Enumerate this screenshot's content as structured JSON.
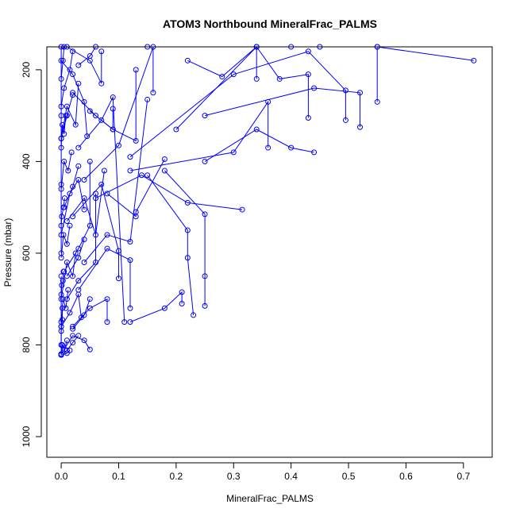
{
  "chart_data": {
    "type": "scatter",
    "title": "ATOM3 Northbound MineralFrac_PALMS",
    "xlabel": "MineralFrac_PALMS",
    "ylabel": "Pressure (mbar)",
    "xlim": [
      -0.025,
      0.75
    ],
    "ylim": [
      1045,
      150
    ],
    "y_axis_reversed": true,
    "x_ticks": [
      0.0,
      0.1,
      0.2,
      0.3,
      0.4,
      0.5,
      0.6,
      0.7
    ],
    "x_tick_labels": [
      "0.0",
      "0.1",
      "0.2",
      "0.3",
      "0.4",
      "0.5",
      "0.6",
      "0.7"
    ],
    "y_ticks": [
      200,
      400,
      600,
      800,
      1000
    ],
    "y_tick_labels": [
      "200",
      "400",
      "600",
      "800",
      "1000"
    ],
    "grid": false,
    "legend": "none",
    "color": "#0000ff",
    "marker": "open-circle",
    "connected_by_lines": true,
    "series": [
      {
        "x": [
          0.718,
          0.55,
          0.45,
          0.34
        ],
        "y": [
          180,
          150,
          150,
          150
        ]
      },
      {
        "x": [
          0.55,
          0.55,
          0.4,
          0.15
        ],
        "y": [
          270,
          150,
          150,
          150
        ]
      },
      {
        "x": [
          0.52,
          0.52,
          0.44,
          0.25
        ],
        "y": [
          325,
          250,
          240,
          300
        ]
      },
      {
        "x": [
          0.495,
          0.495,
          0.43,
          0.3,
          0.12
        ],
        "y": [
          310,
          245,
          160,
          210,
          390
        ]
      },
      {
        "x": [
          0.44,
          0.4,
          0.34,
          0.25
        ],
        "y": [
          380,
          370,
          330,
          400
        ]
      },
      {
        "x": [
          0.43,
          0.43,
          0.38,
          0.34,
          0.2
        ],
        "y": [
          305,
          210,
          220,
          150,
          330
        ]
      },
      {
        "x": [
          0.36,
          0.36,
          0.3,
          0.12
        ],
        "y": [
          370,
          270,
          380,
          420
        ]
      },
      {
        "x": [
          0.34,
          0.34,
          0.28,
          0.22
        ],
        "y": [
          220,
          150,
          215,
          180
        ]
      },
      {
        "x": [
          0.315,
          0.22,
          0.14,
          0.06
        ],
        "y": [
          505,
          490,
          430,
          480
        ]
      },
      {
        "x": [
          0.25,
          0.25,
          0.25,
          0.18
        ],
        "y": [
          715,
          650,
          515,
          420
        ]
      },
      {
        "x": [
          0.23,
          0.22,
          0.22,
          0.15
        ],
        "y": [
          735,
          610,
          550,
          430
        ]
      },
      {
        "x": [
          0.21,
          0.21,
          0.18,
          0.12
        ],
        "y": [
          710,
          685,
          720,
          750
        ]
      },
      {
        "x": [
          0.18,
          0.13,
          0.13,
          0.08
        ],
        "y": [
          395,
          510,
          520,
          470
        ]
      },
      {
        "x": [
          0.16,
          0.16,
          0.1,
          0.04
        ],
        "y": [
          250,
          150,
          365,
          440
        ]
      },
      {
        "x": [
          0.15,
          0.12,
          0.08,
          0.04
        ],
        "y": [
          265,
          575,
          560,
          620
        ]
      },
      {
        "x": [
          0.13,
          0.13,
          0.09,
          0.05
        ],
        "y": [
          200,
          355,
          330,
          290
        ]
      },
      {
        "x": [
          0.12,
          0.12,
          0.08,
          0.03
        ],
        "y": [
          720,
          615,
          590,
          680
        ]
      },
      {
        "x": [
          0.11,
          0.09,
          0.07,
          0.03
        ],
        "y": [
          750,
          260,
          310,
          370
        ]
      },
      {
        "x": [
          0.1,
          0.1,
          0.07,
          0.02
        ],
        "y": [
          655,
          595,
          450,
          520
        ]
      },
      {
        "x": [
          0.09,
          0.09,
          0.06,
          0.02
        ],
        "y": [
          285,
          330,
          300,
          250
        ]
      },
      {
        "x": [
          0.08,
          0.08,
          0.05,
          0.02
        ],
        "y": [
          750,
          700,
          720,
          760
        ]
      },
      {
        "x": [
          0.075,
          0.06,
          0.04,
          0.01
        ],
        "y": [
          420,
          560,
          480,
          530
        ]
      },
      {
        "x": [
          0.07,
          0.07,
          0.05,
          0.01
        ],
        "y": [
          160,
          230,
          180,
          150
        ]
      },
      {
        "x": [
          0.06,
          0.06,
          0.03,
          0.01
        ],
        "y": [
          470,
          620,
          660,
          700
        ]
      },
      {
        "x": [
          0.05,
          0.05,
          0.03,
          0.005
        ],
        "y": [
          400,
          540,
          590,
          640
        ]
      },
      {
        "x": [
          0.05,
          0.04,
          0.02,
          0.0
        ],
        "y": [
          810,
          790,
          780,
          820
        ]
      },
      {
        "x": [
          0.045,
          0.04,
          0.02,
          0.0
        ],
        "y": [
          345,
          270,
          210,
          180
        ]
      },
      {
        "x": [
          0.04,
          0.03,
          0.015,
          0.0
        ],
        "y": [
          505,
          440,
          470,
          560
        ]
      },
      {
        "x": [
          0.035,
          0.03,
          0.015,
          0.0
        ],
        "y": [
          740,
          690,
          730,
          760
        ]
      },
      {
        "x": [
          0.03,
          0.025,
          0.01,
          0.0
        ],
        "y": [
          230,
          320,
          280,
          350
        ]
      },
      {
        "x": [
          0.025,
          0.02,
          0.01,
          0.0
        ],
        "y": [
          600,
          650,
          620,
          700
        ]
      },
      {
        "x": [
          0.02,
          0.015,
          0.005,
          0.0
        ],
        "y": [
          160,
          200,
          240,
          280
        ]
      },
      {
        "x": [
          0.018,
          0.012,
          0.005,
          0.0
        ],
        "y": [
          380,
          420,
          400,
          460
        ]
      },
      {
        "x": [
          0.015,
          0.01,
          0.004,
          0.0
        ],
        "y": [
          540,
          580,
          560,
          610
        ]
      },
      {
        "x": [
          0.012,
          0.008,
          0.003,
          0.0
        ],
        "y": [
          680,
          720,
          700,
          760
        ]
      },
      {
        "x": [
          0.01,
          0.006,
          0.002,
          0.0
        ],
        "y": [
          790,
          810,
          800,
          820
        ]
      },
      {
        "x": [
          0.008,
          0.005,
          0.002,
          0.0
        ],
        "y": [
          300,
          340,
          320,
          370
        ]
      },
      {
        "x": [
          0.006,
          0.004,
          0.001,
          0.0
        ],
        "y": [
          480,
          500,
          520,
          540
        ]
      },
      {
        "x": [
          0.004,
          0.003,
          0.001,
          0.0
        ],
        "y": [
          640,
          660,
          670,
          690
        ]
      },
      {
        "x": [
          0.002,
          0.002,
          0.0,
          0.0
        ],
        "y": [
          720,
          745,
          770,
          800
        ]
      },
      {
        "x": [
          0.0,
          0.0,
          0.0,
          0.0
        ],
        "y": [
          150,
          300,
          450,
          600
        ]
      },
      {
        "x": [
          0.0,
          0.0,
          0.0
        ],
        "y": [
          650,
          750,
          822
        ]
      },
      {
        "x": [
          0.005,
          0.003,
          0.0
        ],
        "y": [
          150,
          180,
          220
        ]
      },
      {
        "x": [
          0.02,
          0.01,
          0.0
        ],
        "y": [
          255,
          300,
          350
        ]
      },
      {
        "x": [
          0.03,
          0.02,
          0.005
        ],
        "y": [
          410,
          455,
          500
        ]
      },
      {
        "x": [
          0.04,
          0.03,
          0.01
        ],
        "y": [
          570,
          610,
          650
        ]
      },
      {
        "x": [
          0.05,
          0.04,
          0.02
        ],
        "y": [
          700,
          735,
          765
        ]
      },
      {
        "x": [
          0.06,
          0.05,
          0.03
        ],
        "y": [
          150,
          170,
          190
        ]
      },
      {
        "x": [
          0.03,
          0.02,
          0.01
        ],
        "y": [
          780,
          795,
          812
        ]
      },
      {
        "x": [
          0.015,
          0.01,
          0.0
        ],
        "y": [
          812,
          818,
          822
        ]
      }
    ]
  }
}
